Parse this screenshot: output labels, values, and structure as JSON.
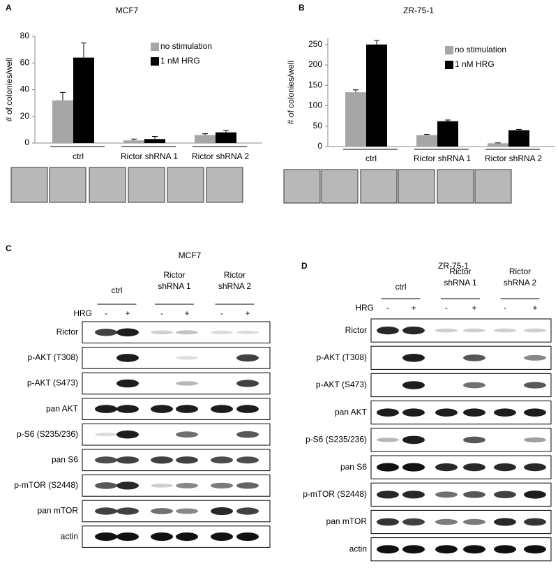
{
  "chart_data": [
    {
      "type": "bar",
      "panel": "A",
      "title": "MCF7",
      "y_label": "# of colonies/well",
      "categories": [
        "ctrl",
        "Rictor shRNA 1",
        "Rictor shRNA 2"
      ],
      "series": [
        {
          "name": "no stimulation",
          "color": "#a6a6a6",
          "values": [
            32,
            2,
            6
          ],
          "errors": [
            6,
            1,
            1
          ]
        },
        {
          "name": "1 nM HRG",
          "color": "#000000",
          "values": [
            64,
            3,
            8
          ],
          "errors": [
            11,
            2,
            1.5
          ]
        }
      ],
      "ylim": [
        0,
        80
      ],
      "yticks": [
        0,
        20,
        40,
        60,
        80
      ],
      "legend": "upper right"
    },
    {
      "type": "bar",
      "panel": "B",
      "title": "ZR-75-1",
      "y_label": "# of colonies/well",
      "categories": [
        "ctrl",
        "Rictor shRNA 1",
        "Rictor shRNA 2"
      ],
      "series": [
        {
          "name": "no stimulation",
          "color": "#a6a6a6",
          "values": [
            133,
            28,
            8
          ],
          "errors": [
            6,
            2,
            1
          ]
        },
        {
          "name": "1 nM HRG",
          "color": "#000000",
          "values": [
            250,
            62,
            40
          ],
          "errors": [
            10,
            3,
            2
          ]
        }
      ],
      "ylim": [
        0,
        265
      ],
      "yticks": [
        0,
        50,
        100,
        150,
        200,
        250
      ],
      "legend": "upper right"
    }
  ],
  "blots": [
    {
      "panel": "C",
      "title": "MCF7",
      "groups": [
        [
          "ctrl"
        ],
        [
          "Rictor",
          "shRNA 1"
        ],
        [
          "Rictor",
          "shRNA 2"
        ]
      ],
      "treatment": "HRG",
      "lanes": [
        "-",
        "+",
        "-",
        "+",
        "-",
        "+"
      ],
      "rows": [
        "Rictor",
        "p-AKT (T308)",
        "p-AKT (S473)",
        "pan AKT",
        "p-S6 (S235/236)",
        "pan S6",
        "p-mTOR (S2448)",
        "pan mTOR",
        "actin"
      ]
    },
    {
      "panel": "D",
      "title": "ZR-75-1",
      "groups": [
        [
          "ctrl"
        ],
        [
          "Rictor",
          "shRNA 1"
        ],
        [
          "Rictor",
          "shRNA 2"
        ]
      ],
      "treatment": "HRG",
      "lanes": [
        "-",
        "+",
        "-",
        "+",
        "-",
        "+"
      ],
      "rows": [
        "Rictor",
        "p-AKT (T308)",
        "p-AKT (S473)",
        "pan AKT",
        "p-S6 (S235/236)",
        "pan S6",
        "p-mTOR (S2448)",
        "pan mTOR",
        "actin"
      ]
    }
  ]
}
